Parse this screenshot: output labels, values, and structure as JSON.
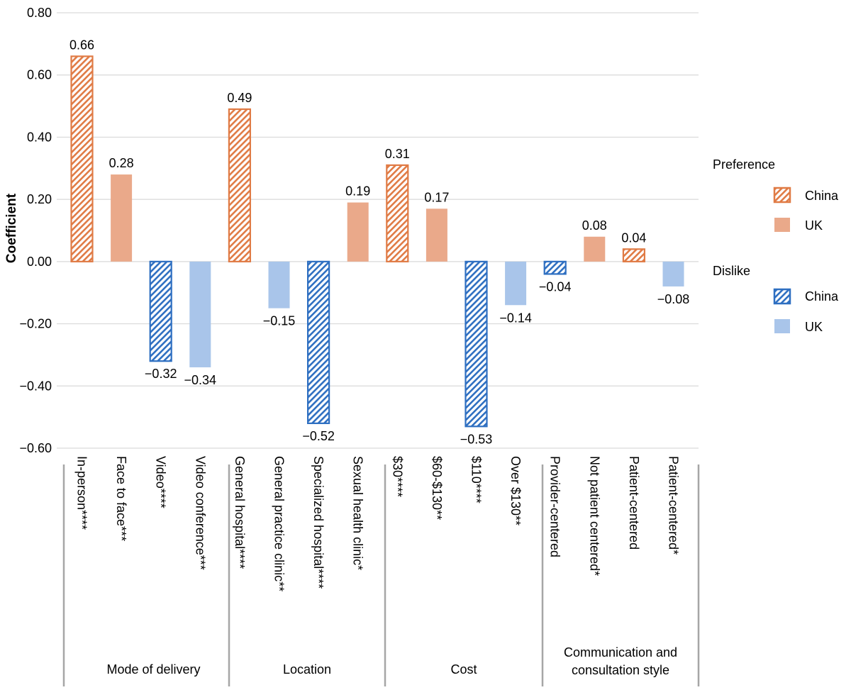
{
  "chart_data": {
    "type": "bar",
    "ylabel": "Coefficient",
    "ylim": [
      -0.6,
      0.8
    ],
    "yticks": [
      "0.80",
      "0.60",
      "0.40",
      "0.20",
      "0.00",
      "−0.20",
      "−0.40",
      "−0.60"
    ],
    "ytick_values": [
      0.8,
      0.6,
      0.4,
      0.2,
      0.0,
      -0.2,
      -0.4,
      -0.6
    ],
    "grid": true,
    "legend_position": "right",
    "legend": {
      "preference_title": "Preference",
      "dislike_title": "Dislike",
      "items": [
        {
          "key": "china_pref",
          "label": "China"
        },
        {
          "key": "uk_pref",
          "label": "UK"
        },
        {
          "key": "china_dislike",
          "label": "China"
        },
        {
          "key": "uk_dislike",
          "label": "UK"
        }
      ]
    },
    "colors": {
      "orange": "#E07B45",
      "orange_fill": "#EAA98A",
      "blue": "#2E6FC1",
      "blue_fill": "#A9C5EA",
      "grid": "#D9D9D9",
      "separator": "#A6A6A6"
    },
    "groups": [
      {
        "name": "Mode of delivery",
        "slots": [
          0,
          4
        ]
      },
      {
        "name": "Location",
        "slots": [
          4,
          8
        ]
      },
      {
        "name": "Cost",
        "slots": [
          8,
          12
        ]
      },
      {
        "name": "Communication and consultation style",
        "name_lines": [
          "Communication and",
          "consultation style"
        ],
        "slots": [
          12,
          16
        ]
      }
    ],
    "bars": [
      {
        "category": "In-person****",
        "value": 0.66,
        "label": "0.66",
        "country": "China",
        "kind": "preference"
      },
      {
        "category": "Face to face***",
        "value": 0.28,
        "label": "0.28",
        "country": "UK",
        "kind": "preference"
      },
      {
        "category": "Video****",
        "value": -0.32,
        "label": "−0.32",
        "country": "China",
        "kind": "dislike"
      },
      {
        "category": "Video conference***",
        "value": -0.34,
        "label": "−0.34",
        "country": "UK",
        "kind": "dislike"
      },
      {
        "category": "General hospital****",
        "value": 0.49,
        "label": "0.49",
        "country": "China",
        "kind": "preference"
      },
      {
        "category": "General practice clinic**",
        "value": -0.15,
        "label": "−0.15",
        "country": "UK",
        "kind": "dislike"
      },
      {
        "category": "Specialized hospital****",
        "value": -0.52,
        "label": "−0.52",
        "country": "China",
        "kind": "dislike"
      },
      {
        "category": "Sexual health clinic*",
        "value": 0.19,
        "label": "0.19",
        "country": "UK",
        "kind": "preference"
      },
      {
        "category": "$30****",
        "value": 0.31,
        "label": "0.31",
        "country": "China",
        "kind": "preference"
      },
      {
        "category": "$60-$130**",
        "value": 0.17,
        "label": "0.17",
        "country": "UK",
        "kind": "preference"
      },
      {
        "category": "$110****",
        "value": -0.53,
        "label": "−0.53",
        "country": "China",
        "kind": "dislike"
      },
      {
        "category": "Over $130**",
        "value": -0.14,
        "label": "−0.14",
        "country": "UK",
        "kind": "dislike"
      },
      {
        "category": "Provider-centered",
        "value": -0.04,
        "label": "−0.04",
        "country": "China",
        "kind": "dislike"
      },
      {
        "category": "Not patient centered*",
        "value": 0.08,
        "label": "0.08",
        "country": "UK",
        "kind": "preference"
      },
      {
        "category": "Patient-centered",
        "value": 0.04,
        "label": "0.04",
        "country": "China",
        "kind": "preference"
      },
      {
        "category": "Patient-centered*",
        "value": -0.08,
        "label": "−0.08",
        "country": "UK",
        "kind": "dislike"
      }
    ]
  }
}
